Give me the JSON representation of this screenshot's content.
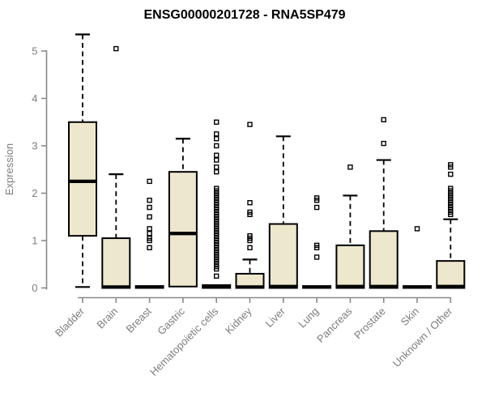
{
  "chart_data": {
    "type": "boxplot",
    "title": "ENSG00000201728 - RNA5SP479",
    "ylabel": "Expression",
    "xlabel": "",
    "ylim": [
      0,
      5.5
    ],
    "yticks": [
      0,
      1,
      2,
      3,
      4,
      5
    ],
    "grid": false,
    "legend": "none",
    "categories": [
      "Bladder",
      "Brain",
      "Breast",
      "Gastric",
      "Hematopoietic cells",
      "Kidney",
      "Liver",
      "Lung",
      "Pancreas",
      "Prostate",
      "Skin",
      "Unknown / Other"
    ],
    "series": [
      {
        "category": "Bladder",
        "whisker_low": 0.02,
        "q1": 1.1,
        "median": 2.25,
        "q3": 3.5,
        "whisker_high": 5.35,
        "outliers": []
      },
      {
        "category": "Brain",
        "whisker_low": 0,
        "q1": 0,
        "median": 0.02,
        "q3": 1.05,
        "whisker_high": 2.4,
        "outliers": [
          5.05
        ]
      },
      {
        "category": "Breast",
        "whisker_low": 0,
        "q1": 0,
        "median": 0.02,
        "q3": 0.04,
        "whisker_high": 0.04,
        "outliers": [
          2.25,
          1.85,
          1.7,
          1.5,
          1.25,
          1.15,
          1.05,
          1.0,
          0.85
        ]
      },
      {
        "category": "Gastric",
        "whisker_low": 0,
        "q1": 0.03,
        "median": 1.15,
        "q3": 2.45,
        "whisker_high": 3.15,
        "outliers": []
      },
      {
        "category": "Hematopoietic cells",
        "whisker_low": 0,
        "q1": 0,
        "median": 0.02,
        "q3": 0.06,
        "whisker_high": 0.08,
        "outliers": [
          3.5,
          3.25,
          3.15,
          3.0,
          2.8,
          2.7,
          2.55,
          2.45,
          2.1,
          2.05,
          2.0,
          1.95,
          1.9,
          1.85,
          1.8,
          1.75,
          1.7,
          1.65,
          1.6,
          1.55,
          1.5,
          1.45,
          1.4,
          1.35,
          1.3,
          1.25,
          1.2,
          1.15,
          1.1,
          1.05,
          1.0,
          0.95,
          0.9,
          0.85,
          0.8,
          0.75,
          0.7,
          0.65,
          0.6,
          0.55,
          0.5,
          0.45,
          0.4,
          0.25
        ]
      },
      {
        "category": "Kidney",
        "whisker_low": 0,
        "q1": 0,
        "median": 0.02,
        "q3": 0.3,
        "whisker_high": 0.6,
        "outliers": [
          3.45,
          1.8,
          1.6,
          1.55,
          1.1,
          1.05,
          1.0,
          0.85
        ]
      },
      {
        "category": "Liver",
        "whisker_low": 0,
        "q1": 0,
        "median": 0.03,
        "q3": 1.35,
        "whisker_high": 3.2,
        "outliers": []
      },
      {
        "category": "Lung",
        "whisker_low": 0,
        "q1": 0,
        "median": 0.02,
        "q3": 0.04,
        "whisker_high": 0.04,
        "outliers": [
          1.9,
          1.85,
          1.7,
          0.9,
          0.85,
          0.65
        ]
      },
      {
        "category": "Pancreas",
        "whisker_low": 0,
        "q1": 0,
        "median": 0.03,
        "q3": 0.9,
        "whisker_high": 1.95,
        "outliers": [
          2.55
        ]
      },
      {
        "category": "Prostate",
        "whisker_low": 0,
        "q1": 0,
        "median": 0.03,
        "q3": 1.2,
        "whisker_high": 2.7,
        "outliers": [
          3.55,
          3.05
        ]
      },
      {
        "category": "Skin",
        "whisker_low": 0,
        "q1": 0,
        "median": 0.02,
        "q3": 0.04,
        "whisker_high": 0.04,
        "outliers": [
          1.25
        ]
      },
      {
        "category": "Unknown / Other",
        "whisker_low": 0,
        "q1": 0,
        "median": 0.03,
        "q3": 0.57,
        "whisker_high": 1.45,
        "outliers": [
          2.6,
          2.55,
          2.4,
          2.1,
          2.05,
          2.0,
          1.95,
          1.9,
          1.85,
          1.8,
          1.75,
          1.7,
          1.65,
          1.6,
          1.55
        ]
      }
    ],
    "colors": {
      "box_fill": "#EDE8CD",
      "box_stroke": "#000000",
      "median": "#000000",
      "whisker": "#000000",
      "outlier": "#000000",
      "axis": "#8a8a8a",
      "tick_label": "#7d7d7d",
      "title": "#000000"
    }
  }
}
